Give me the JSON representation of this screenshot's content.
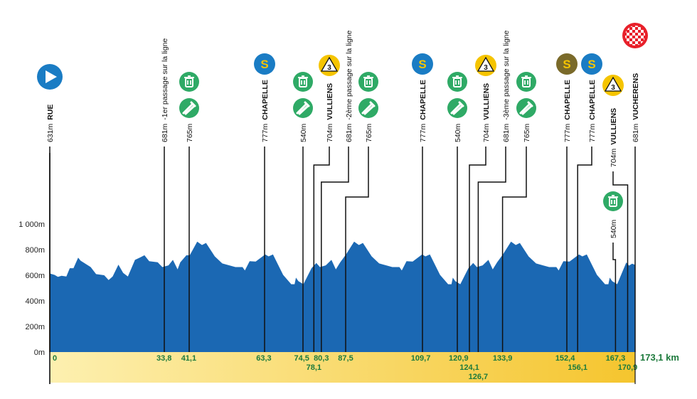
{
  "chart_data": {
    "type": "area",
    "title": "",
    "xlabel": "",
    "ylabel": "",
    "xlim": [
      0,
      173.1
    ],
    "ylim": [
      0,
      1000
    ],
    "total_distance_label": "173,1 km",
    "y_ticks": [
      {
        "value": 0,
        "label": "0m"
      },
      {
        "value": 200,
        "label": "200m"
      },
      {
        "value": 400,
        "label": "400m"
      },
      {
        "value": 600,
        "label": "600m"
      },
      {
        "value": 800,
        "label": "800m"
      },
      {
        "value": 1000,
        "label": "1 000m"
      }
    ],
    "colors": {
      "profile": "#1b68b3",
      "band_start": "#fdf0b0",
      "band_end": "#f5c52e",
      "km_text": "#1d7a3c",
      "feed": "#2faa66",
      "sprint": "#1a7cc4",
      "sprint_alt": "#7a6a2a",
      "kom": "#f5c400",
      "finish": "#e8202a"
    },
    "profile": [
      [
        0,
        614
      ],
      [
        1.4,
        603
      ],
      [
        2.4,
        587
      ],
      [
        3.5,
        596
      ],
      [
        4.9,
        590
      ],
      [
        5.9,
        655
      ],
      [
        7.0,
        655
      ],
      [
        8.4,
        738
      ],
      [
        9.1,
        714
      ],
      [
        12.1,
        664
      ],
      [
        13.7,
        609
      ],
      [
        16.1,
        600
      ],
      [
        17.4,
        563
      ],
      [
        18.6,
        590
      ],
      [
        20.3,
        683
      ],
      [
        21.7,
        618
      ],
      [
        23.1,
        590
      ],
      [
        25.2,
        720
      ],
      [
        26.6,
        738
      ],
      [
        28.0,
        756
      ],
      [
        29.4,
        710
      ],
      [
        31.9,
        701
      ],
      [
        33.3,
        664
      ],
      [
        35.1,
        677
      ],
      [
        36.4,
        720
      ],
      [
        37.8,
        646
      ],
      [
        38.6,
        701
      ],
      [
        40.4,
        756
      ],
      [
        41.4,
        756
      ],
      [
        43.6,
        862
      ],
      [
        45.0,
        836
      ],
      [
        46.2,
        852
      ],
      [
        48.8,
        747
      ],
      [
        51.0,
        692
      ],
      [
        54.9,
        664
      ],
      [
        57.0,
        664
      ],
      [
        57.7,
        637
      ],
      [
        59.1,
        710
      ],
      [
        60.9,
        707
      ],
      [
        63.7,
        762
      ],
      [
        64.7,
        747
      ],
      [
        66.0,
        762
      ],
      [
        69.0,
        603
      ],
      [
        71.4,
        530
      ],
      [
        72.4,
        530
      ],
      [
        72.8,
        581
      ],
      [
        73.5,
        554
      ],
      [
        75.0,
        530
      ],
      [
        77.4,
        655
      ],
      [
        78.8,
        696
      ],
      [
        79.9,
        664
      ],
      [
        81.6,
        677
      ],
      [
        83.3,
        720
      ],
      [
        84.6,
        646
      ],
      [
        85.9,
        701
      ],
      [
        87.6,
        762
      ],
      [
        90.0,
        862
      ],
      [
        91.4,
        836
      ],
      [
        92.6,
        852
      ],
      [
        95.2,
        747
      ],
      [
        97.4,
        692
      ],
      [
        101.3,
        664
      ],
      [
        103.4,
        664
      ],
      [
        104.1,
        637
      ],
      [
        105.5,
        710
      ],
      [
        107.3,
        707
      ],
      [
        110.1,
        762
      ],
      [
        111.1,
        747
      ],
      [
        112.4,
        762
      ],
      [
        115.4,
        603
      ],
      [
        117.8,
        530
      ],
      [
        118.8,
        530
      ],
      [
        119.2,
        581
      ],
      [
        119.9,
        554
      ],
      [
        121.4,
        530
      ],
      [
        123.8,
        655
      ],
      [
        125.2,
        696
      ],
      [
        126.3,
        664
      ],
      [
        128.0,
        677
      ],
      [
        129.7,
        720
      ],
      [
        131.0,
        646
      ],
      [
        132.3,
        701
      ],
      [
        134.0,
        762
      ],
      [
        136.4,
        862
      ],
      [
        137.8,
        836
      ],
      [
        139.0,
        852
      ],
      [
        141.6,
        747
      ],
      [
        143.8,
        692
      ],
      [
        147.7,
        664
      ],
      [
        149.8,
        664
      ],
      [
        150.5,
        637
      ],
      [
        151.9,
        710
      ],
      [
        153.7,
        707
      ],
      [
        156.5,
        762
      ],
      [
        157.5,
        747
      ],
      [
        158.8,
        762
      ],
      [
        161.8,
        603
      ],
      [
        164.2,
        530
      ],
      [
        165.2,
        530
      ],
      [
        165.6,
        581
      ],
      [
        166.3,
        554
      ],
      [
        167.8,
        530
      ],
      [
        170.5,
        700
      ],
      [
        171.3,
        675
      ],
      [
        172.2,
        690
      ],
      [
        173.1,
        681
      ]
    ],
    "points": [
      {
        "km": 0,
        "km_label": "0",
        "elevation": "631m",
        "name": "RUE",
        "icons": [
          "start-icon"
        ]
      },
      {
        "km": 33.8,
        "km_label": "33,8",
        "elevation": "681m",
        "note": "-1er passage sur la ligne",
        "icons": []
      },
      {
        "km": 41.1,
        "km_label": "41,1",
        "elevation": "765m",
        "icons": [
          "waste-zone-icon",
          "feed-zone-icon"
        ]
      },
      {
        "km": 63.3,
        "km_label": "63,3",
        "elevation": "777m",
        "name": "CHAPELLE",
        "icons": [
          "sprint-icon"
        ]
      },
      {
        "km": 74.5,
        "km_label": "74,5",
        "elevation": "540m",
        "icons": [
          "waste-zone-icon",
          "feed-zone-icon"
        ]
      },
      {
        "km": 78.1,
        "km_label": "78,1",
        "elevation": "704m",
        "name": "VULLIENS",
        "icons": [
          "kom-icon"
        ],
        "kom_category": "3"
      },
      {
        "km": 80.3,
        "km_label": "80,3",
        "elevation": "681m",
        "note": "-2ème passage sur la ligne",
        "icons": []
      },
      {
        "km": 87.5,
        "km_label": "87,5",
        "elevation": "765m",
        "icons": [
          "waste-zone-icon",
          "feed-zone-icon"
        ]
      },
      {
        "km": 109.7,
        "km_label": "109,7",
        "elevation": "777m",
        "name": "CHAPELLE",
        "icons": [
          "sprint-icon"
        ]
      },
      {
        "km": 120.9,
        "km_label": "120,9",
        "elevation": "540m",
        "icons": [
          "waste-zone-icon",
          "feed-zone-icon"
        ]
      },
      {
        "km": 124.1,
        "km_label": "124,1",
        "elevation": "704m",
        "name": "VULLIENS",
        "icons": [
          "kom-icon"
        ],
        "kom_category": "3"
      },
      {
        "km": 126.7,
        "km_label": "126,7",
        "elevation": "681m",
        "note": "-3ème passage sur la ligne",
        "icons": []
      },
      {
        "km": 133.9,
        "km_label": "133,9",
        "elevation": "765m",
        "icons": [
          "waste-zone-icon",
          "feed-zone-icon"
        ]
      },
      {
        "km": 152.4,
        "km_label": "152,4",
        "elevation": "777m",
        "name": "CHAPELLE",
        "icons": [
          "sprint-alt-icon"
        ]
      },
      {
        "km": 156.1,
        "km_label": "156,1",
        "elevation": "777m",
        "name": "CHAPELLE",
        "icons": [
          "sprint-icon"
        ]
      },
      {
        "km": 167.3,
        "km_label": "167,3",
        "elevation": "540m",
        "icons": [
          "waste-zone-icon"
        ]
      },
      {
        "km": 170.9,
        "km_label": "170,9",
        "elevation": "704m",
        "name": "VULLIENS",
        "icons": [
          "kom-icon"
        ],
        "kom_category": "3"
      },
      {
        "km": 173.1,
        "km_label": "",
        "elevation": "681m",
        "name": "VUCHERENS",
        "icons": [
          "finish-icon"
        ]
      }
    ]
  }
}
